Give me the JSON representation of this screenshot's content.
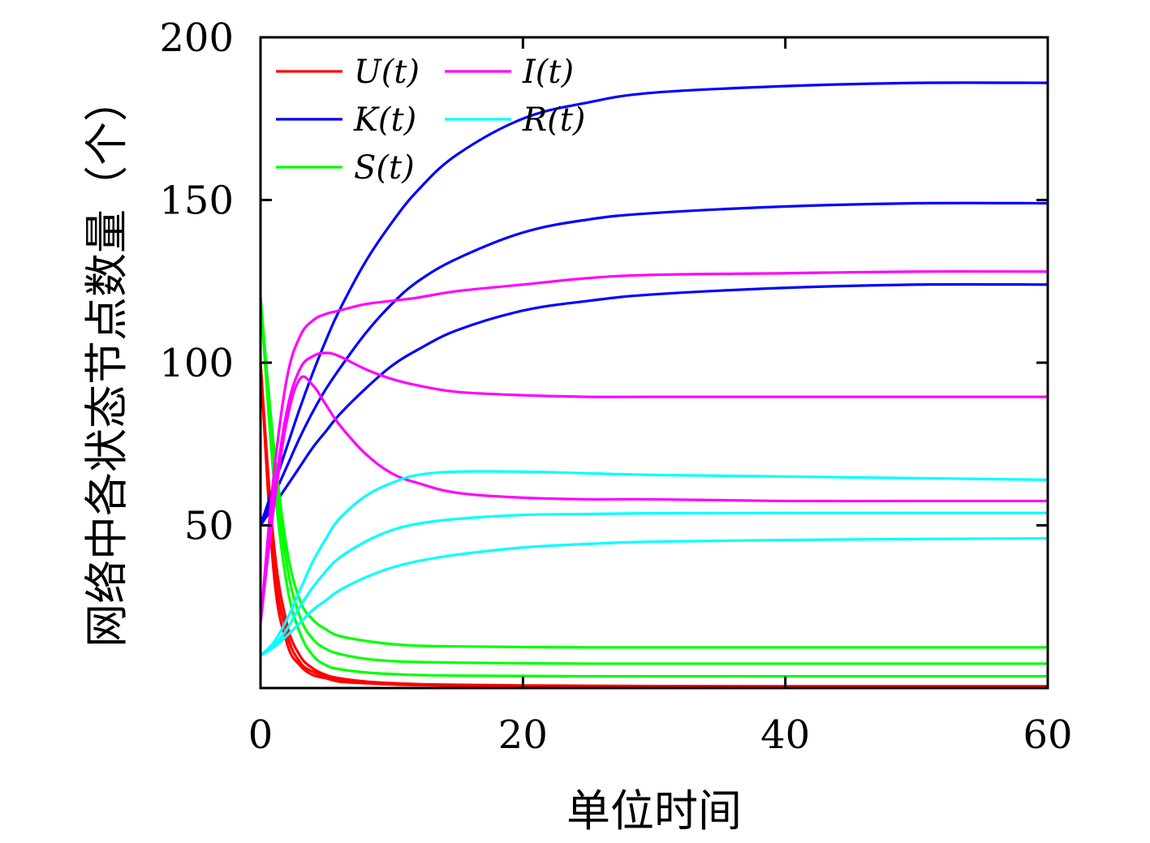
{
  "chart_data": {
    "type": "line",
    "title": "",
    "xlabel": "单位时间",
    "ylabel": "网络中各状态节点数量（个）",
    "xlim": [
      0,
      60
    ],
    "ylim": [
      0,
      200
    ],
    "xticks": [
      0,
      20,
      40,
      60
    ],
    "yticks": [
      50,
      100,
      150,
      200
    ],
    "grid": false,
    "legend_position": "top-left",
    "x": [
      0,
      1,
      2,
      3,
      4,
      5,
      6,
      8,
      10,
      12,
      15,
      20,
      25,
      30,
      40,
      50,
      60
    ],
    "series": [
      {
        "name": "U(t)",
        "color": "#ff0000",
        "values": [
          100,
          45,
          20,
          10,
          6,
          4,
          3,
          2,
          1.5,
          1.2,
          1,
          0.8,
          0.7,
          0.6,
          0.5,
          0.5,
          0.5
        ]
      },
      {
        "name": "",
        "color": "#ff0000",
        "values": [
          100,
          40,
          17,
          8,
          5,
          3.5,
          2.5,
          1.8,
          1.3,
          1,
          0.8,
          0.6,
          0.5,
          0.5,
          0.5,
          0.5,
          0.5
        ]
      },
      {
        "name": "",
        "color": "#ff0000",
        "values": [
          100,
          36,
          14,
          7,
          4,
          3,
          2,
          1.5,
          1.1,
          0.9,
          0.7,
          0.5,
          0.5,
          0.5,
          0.5,
          0.5,
          0.5
        ]
      },
      {
        "name": "K(t)",
        "color": "#0000ff",
        "values": [
          50,
          62,
          74,
          86,
          97,
          107,
          116,
          131,
          143,
          153,
          164,
          175,
          180,
          183,
          185,
          186,
          186
        ]
      },
      {
        "name": "",
        "color": "#0000ff",
        "values": [
          50,
          59,
          68,
          77,
          85,
          92,
          98,
          109,
          118,
          125,
          132,
          140,
          144,
          146,
          148,
          149,
          149
        ]
      },
      {
        "name": "",
        "color": "#0000ff",
        "values": [
          50,
          56,
          62,
          68,
          74,
          79,
          84,
          92,
          99,
          104,
          110,
          116,
          119,
          121,
          123,
          124,
          124
        ]
      },
      {
        "name": "S(t)",
        "color": "#00ff00",
        "values": [
          120,
          75,
          43,
          27,
          21,
          18,
          16,
          14.5,
          13.5,
          13,
          12.8,
          12.6,
          12.5,
          12.5,
          12.5,
          12.5,
          12.5
        ]
      },
      {
        "name": "",
        "color": "#00ff00",
        "values": [
          120,
          70,
          38,
          22,
          15,
          12,
          10.5,
          9,
          8.3,
          8,
          7.8,
          7.6,
          7.5,
          7.5,
          7.5,
          7.5,
          7.5
        ]
      },
      {
        "name": "",
        "color": "#00ff00",
        "values": [
          120,
          65,
          32,
          17,
          10,
          7,
          5.8,
          4.8,
          4.3,
          4,
          3.8,
          3.7,
          3.6,
          3.6,
          3.6,
          3.6,
          3.6
        ]
      },
      {
        "name": "I(t)",
        "color": "#ff00ff",
        "values": [
          20,
          65,
          95,
          108,
          113,
          115,
          116,
          118,
          119,
          120,
          122,
          124,
          126,
          127,
          127.5,
          128,
          128
        ]
      },
      {
        "name": "",
        "color": "#ff00ff",
        "values": [
          20,
          58,
          85,
          98,
          102,
          103,
          102,
          98,
          95,
          93,
          91,
          90,
          89.5,
          89.5,
          89.5,
          89.5,
          89.5
        ]
      },
      {
        "name": "",
        "color": "#ff00ff",
        "values": [
          20,
          55,
          82,
          95,
          93,
          87,
          81,
          72,
          66,
          63,
          60,
          58.5,
          58,
          58,
          57.5,
          57.5,
          57.5
        ]
      },
      {
        "name": "R(t)",
        "color": "#00ffff",
        "values": [
          10,
          14,
          21,
          30,
          39,
          46,
          52,
          59,
          63,
          65.5,
          66.5,
          66.5,
          66,
          65.5,
          65,
          64.5,
          64
        ]
      },
      {
        "name": "",
        "color": "#00ffff",
        "values": [
          10,
          13,
          18,
          25,
          31,
          36,
          40,
          45,
          48.5,
          50.5,
          52,
          53.2,
          53.5,
          53.7,
          53.8,
          53.8,
          53.8
        ]
      },
      {
        "name": "",
        "color": "#00ffff",
        "values": [
          10,
          12.5,
          16,
          20,
          24,
          27,
          30,
          34,
          37,
          39,
          41,
          43.2,
          44.3,
          45,
          45.5,
          45.8,
          46
        ]
      }
    ]
  }
}
